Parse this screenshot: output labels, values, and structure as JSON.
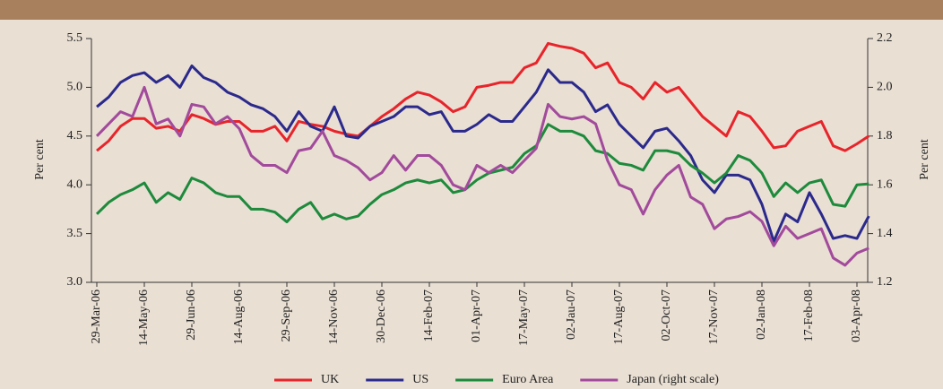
{
  "chart_data": {
    "type": "line",
    "categories": [
      "29-Mar-06",
      null,
      null,
      null,
      "14-May-06",
      null,
      null,
      null,
      "29-Jun-06",
      null,
      null,
      null,
      "14-Aug-06",
      null,
      null,
      null,
      "29-Sep-06",
      null,
      null,
      null,
      "14-Nov-06",
      null,
      null,
      null,
      "30-Dec-06",
      null,
      null,
      null,
      "14-Feb-07",
      null,
      null,
      null,
      "01-Apr-07",
      null,
      null,
      null,
      "17-May-07",
      null,
      null,
      null,
      "02-Jau-07",
      null,
      null,
      null,
      "17-Aug-07",
      null,
      null,
      null,
      "02-Oct-07",
      null,
      null,
      null,
      "17-Nov-07",
      null,
      null,
      null,
      "02-Jan-08",
      null,
      null,
      null,
      "17-Feb-08",
      null,
      null,
      null,
      "03-Apr-08",
      null
    ],
    "y_label": "Per cent",
    "y2_label": "Per cent",
    "ylim": [
      3.0,
      5.5
    ],
    "yticks": [
      {
        "value": 3.0,
        "label": "3.0"
      },
      3.5,
      {
        "value": 4.0,
        "label": "4.0"
      },
      4.5,
      {
        "value": 5.0,
        "label": "5.0"
      },
      5.5
    ],
    "y2lim": [
      1.2,
      2.2
    ],
    "y2ticks": [
      1.2,
      1.4,
      1.6,
      1.8,
      {
        "value": 2.0,
        "label": "2.0"
      },
      2.2
    ],
    "series": [
      {
        "name": "UK",
        "color": "#e8242b",
        "values": [
          4.35,
          4.45,
          4.6,
          4.68,
          4.68,
          4.58,
          4.6,
          4.55,
          4.72,
          4.68,
          4.62,
          4.65,
          4.65,
          4.55,
          4.55,
          4.6,
          4.45,
          4.65,
          4.62,
          4.6,
          4.55,
          4.52,
          4.5,
          4.6,
          4.7,
          4.78,
          4.88,
          4.95,
          4.92,
          4.85,
          4.75,
          4.8,
          5.0,
          5.02,
          5.05,
          5.05,
          5.2,
          5.25,
          5.45,
          5.42,
          5.4,
          5.35,
          5.2,
          5.25,
          5.05,
          5.0,
          4.88,
          5.05,
          4.95,
          5.0,
          4.85,
          4.7,
          4.6,
          4.5,
          4.75,
          4.7,
          4.55,
          4.38,
          4.4,
          4.55,
          4.6,
          4.65,
          4.4,
          4.35,
          4.42,
          4.5
        ]
      },
      {
        "name": "US",
        "color": "#2b2a8c",
        "values": [
          4.8,
          4.9,
          5.05,
          5.12,
          5.15,
          5.05,
          5.12,
          5.0,
          5.22,
          5.1,
          5.05,
          4.95,
          4.9,
          4.82,
          4.78,
          4.7,
          4.55,
          4.75,
          4.6,
          4.55,
          4.8,
          4.5,
          4.48,
          4.6,
          4.65,
          4.7,
          4.8,
          4.8,
          4.72,
          4.75,
          4.55,
          4.55,
          4.62,
          4.72,
          4.65,
          4.65,
          4.8,
          4.95,
          5.18,
          5.05,
          5.05,
          4.95,
          4.75,
          4.82,
          4.62,
          4.5,
          4.38,
          4.55,
          4.58,
          4.45,
          4.3,
          4.05,
          3.92,
          4.1,
          4.1,
          4.05,
          3.8,
          3.42,
          3.7,
          3.62,
          3.92,
          3.7,
          3.45,
          3.48,
          3.45,
          3.68
        ]
      },
      {
        "name": "Euro Area",
        "color": "#1d8a3c",
        "values": [
          3.7,
          3.82,
          3.9,
          3.95,
          4.02,
          3.82,
          3.92,
          3.85,
          4.07,
          4.02,
          3.92,
          3.88,
          3.88,
          3.75,
          3.75,
          3.72,
          3.62,
          3.75,
          3.82,
          3.65,
          3.7,
          3.65,
          3.68,
          3.8,
          3.9,
          3.95,
          4.02,
          4.05,
          4.02,
          4.05,
          3.92,
          3.95,
          4.05,
          4.12,
          4.15,
          4.18,
          4.32,
          4.4,
          4.62,
          4.55,
          4.55,
          4.5,
          4.35,
          4.32,
          4.22,
          4.2,
          4.15,
          4.35,
          4.35,
          4.32,
          4.2,
          4.12,
          4.02,
          4.12,
          4.3,
          4.25,
          4.12,
          3.88,
          4.02,
          3.92,
          4.02,
          4.05,
          3.8,
          3.78,
          4.0,
          4.01
        ]
      },
      {
        "name": "Japan (right scale)",
        "color": "#a24a9c",
        "axis": "y2",
        "values": [
          1.8,
          1.85,
          1.9,
          1.88,
          2.0,
          1.85,
          1.87,
          1.8,
          1.93,
          1.92,
          1.85,
          1.88,
          1.83,
          1.72,
          1.68,
          1.68,
          1.65,
          1.74,
          1.75,
          1.82,
          1.72,
          1.7,
          1.67,
          1.62,
          1.65,
          1.72,
          1.66,
          1.72,
          1.72,
          1.68,
          1.6,
          1.58,
          1.68,
          1.65,
          1.68,
          1.65,
          1.7,
          1.75,
          1.93,
          1.88,
          1.87,
          1.88,
          1.85,
          1.7,
          1.6,
          1.58,
          1.48,
          1.58,
          1.64,
          1.68,
          1.55,
          1.52,
          1.42,
          1.46,
          1.47,
          1.49,
          1.45,
          1.35,
          1.43,
          1.38,
          1.4,
          1.42,
          1.3,
          1.27,
          1.32,
          1.34
        ]
      }
    ]
  }
}
